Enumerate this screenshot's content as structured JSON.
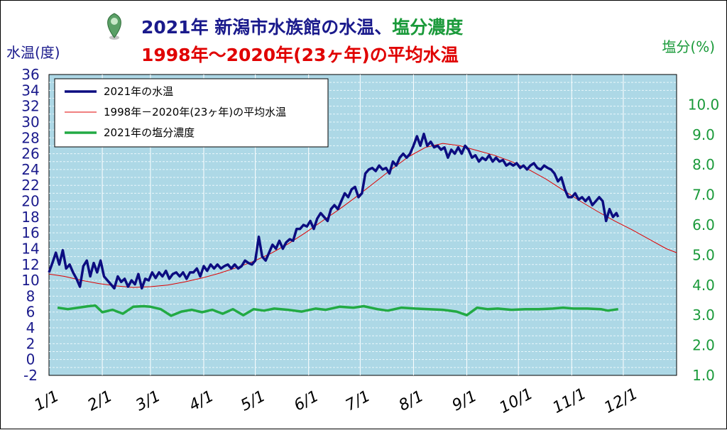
{
  "title_line1_a": "2021年 新潟市水族館の水温、",
  "title_line1_b": "塩分濃度",
  "title_line2": "1998年～2020年(23ヶ年)の平均水温",
  "colors": {
    "water_2021": "#0c0c80",
    "average": "#e00000",
    "salinity": "#22aa44",
    "plot_bg": "#add8e6",
    "left_axis": "#1a1a8c",
    "right_axis": "#1a9a3a"
  },
  "chart_data": {
    "type": "line",
    "ylabel_left": "水温(度)",
    "ylabel_right": "塩分(%)",
    "ylim_left": [
      -2,
      36
    ],
    "ylim_right": [
      1.0,
      11.0
    ],
    "yticks_left": [
      "36",
      "34",
      "32",
      "30",
      "28",
      "26",
      "24",
      "22",
      "20",
      "18",
      "16",
      "14",
      "12",
      "10",
      "8",
      "6",
      "4",
      "2",
      "0",
      "-2"
    ],
    "yticks_right": [
      "10.0",
      "9.0",
      "8.0",
      "7.0",
      "6.0",
      "5.0",
      "4.0",
      "3.0",
      "2.0",
      "1.0"
    ],
    "xlim_days": [
      1,
      366
    ],
    "x_ticks": [
      {
        "label": "1/1",
        "day": 1
      },
      {
        "label": "2/1",
        "day": 32
      },
      {
        "label": "3/1",
        "day": 60
      },
      {
        "label": "4/1",
        "day": 91
      },
      {
        "label": "5/1",
        "day": 121
      },
      {
        "label": "6/1",
        "day": 152
      },
      {
        "label": "7/1",
        "day": 182
      },
      {
        "label": "8/1",
        "day": 213
      },
      {
        "label": "9/1",
        "day": 244
      },
      {
        "label": "10/1",
        "day": 274
      },
      {
        "label": "11/1",
        "day": 305
      },
      {
        "label": "12/1",
        "day": 335
      }
    ],
    "legend": [
      "2021年の水温",
      "1998年－2020年(23ヶ年)の平均水温",
      "2021年の塩分濃度"
    ],
    "legend_position": "top-left",
    "grid": true,
    "series": [
      {
        "name": "2021年の水温",
        "axis": "left",
        "points": [
          [
            1,
            11.0
          ],
          [
            3,
            12.2
          ],
          [
            5,
            13.5
          ],
          [
            7,
            12.0
          ],
          [
            9,
            13.8
          ],
          [
            11,
            11.5
          ],
          [
            13,
            12.0
          ],
          [
            15,
            11.0
          ],
          [
            17,
            10.2
          ],
          [
            19,
            9.2
          ],
          [
            21,
            11.8
          ],
          [
            23,
            12.5
          ],
          [
            25,
            10.5
          ],
          [
            27,
            12.2
          ],
          [
            29,
            11.0
          ],
          [
            31,
            12.5
          ],
          [
            33,
            10.5
          ],
          [
            35,
            10.0
          ],
          [
            37,
            9.5
          ],
          [
            39,
            9.0
          ],
          [
            41,
            10.5
          ],
          [
            43,
            9.8
          ],
          [
            45,
            10.2
          ],
          [
            47,
            9.2
          ],
          [
            49,
            10.0
          ],
          [
            51,
            9.5
          ],
          [
            53,
            10.8
          ],
          [
            55,
            9.0
          ],
          [
            57,
            10.2
          ],
          [
            59,
            10.0
          ],
          [
            61,
            11.0
          ],
          [
            63,
            10.3
          ],
          [
            65,
            11.0
          ],
          [
            67,
            10.5
          ],
          [
            69,
            11.2
          ],
          [
            71,
            10.2
          ],
          [
            73,
            10.8
          ],
          [
            75,
            11.0
          ],
          [
            77,
            10.5
          ],
          [
            79,
            11.0
          ],
          [
            81,
            10.2
          ],
          [
            83,
            11.0
          ],
          [
            85,
            11.0
          ],
          [
            87,
            11.5
          ],
          [
            89,
            10.5
          ],
          [
            91,
            11.8
          ],
          [
            93,
            11.2
          ],
          [
            95,
            12.0
          ],
          [
            97,
            11.5
          ],
          [
            99,
            12.0
          ],
          [
            101,
            11.5
          ],
          [
            103,
            11.8
          ],
          [
            105,
            12.0
          ],
          [
            107,
            11.5
          ],
          [
            109,
            12.0
          ],
          [
            111,
            11.5
          ],
          [
            113,
            11.8
          ],
          [
            115,
            12.5
          ],
          [
            117,
            12.2
          ],
          [
            119,
            12.0
          ],
          [
            121,
            12.5
          ],
          [
            123,
            15.5
          ],
          [
            125,
            13.0
          ],
          [
            127,
            12.5
          ],
          [
            129,
            13.5
          ],
          [
            131,
            14.5
          ],
          [
            133,
            14.0
          ],
          [
            135,
            15.0
          ],
          [
            137,
            14.0
          ],
          [
            139,
            14.8
          ],
          [
            141,
            15.2
          ],
          [
            143,
            15.0
          ],
          [
            145,
            16.5
          ],
          [
            147,
            16.5
          ],
          [
            149,
            17.0
          ],
          [
            151,
            16.8
          ],
          [
            153,
            17.5
          ],
          [
            155,
            16.5
          ],
          [
            157,
            17.8
          ],
          [
            159,
            18.5
          ],
          [
            161,
            18.0
          ],
          [
            163,
            17.5
          ],
          [
            165,
            19.0
          ],
          [
            167,
            19.5
          ],
          [
            169,
            19.0
          ],
          [
            171,
            20.0
          ],
          [
            173,
            21.0
          ],
          [
            175,
            20.5
          ],
          [
            177,
            21.5
          ],
          [
            179,
            21.8
          ],
          [
            181,
            20.5
          ],
          [
            183,
            21.0
          ],
          [
            185,
            23.5
          ],
          [
            187,
            24.0
          ],
          [
            189,
            24.2
          ],
          [
            191,
            23.8
          ],
          [
            193,
            24.5
          ],
          [
            195,
            24.0
          ],
          [
            197,
            24.2
          ],
          [
            199,
            23.5
          ],
          [
            201,
            25.0
          ],
          [
            203,
            24.5
          ],
          [
            205,
            25.5
          ],
          [
            207,
            26.0
          ],
          [
            209,
            25.5
          ],
          [
            211,
            26.0
          ],
          [
            213,
            27.0
          ],
          [
            215,
            28.2
          ],
          [
            217,
            27.0
          ],
          [
            219,
            28.5
          ],
          [
            221,
            27.0
          ],
          [
            223,
            27.5
          ],
          [
            225,
            26.8
          ],
          [
            227,
            27.0
          ],
          [
            229,
            26.5
          ],
          [
            231,
            26.8
          ],
          [
            233,
            25.5
          ],
          [
            235,
            26.5
          ],
          [
            237,
            26.0
          ],
          [
            239,
            26.8
          ],
          [
            241,
            26.0
          ],
          [
            243,
            27.0
          ],
          [
            245,
            26.5
          ],
          [
            247,
            25.5
          ],
          [
            249,
            25.8
          ],
          [
            251,
            25.0
          ],
          [
            253,
            25.5
          ],
          [
            255,
            25.2
          ],
          [
            257,
            25.8
          ],
          [
            259,
            25.0
          ],
          [
            261,
            25.5
          ],
          [
            263,
            25.0
          ],
          [
            265,
            25.2
          ],
          [
            267,
            24.5
          ],
          [
            269,
            24.8
          ],
          [
            271,
            24.5
          ],
          [
            273,
            24.8
          ],
          [
            275,
            24.2
          ],
          [
            277,
            24.5
          ],
          [
            279,
            24.0
          ],
          [
            281,
            24.5
          ],
          [
            283,
            24.8
          ],
          [
            285,
            24.2
          ],
          [
            287,
            24.0
          ],
          [
            289,
            24.5
          ],
          [
            291,
            24.2
          ],
          [
            293,
            24.0
          ],
          [
            295,
            23.5
          ],
          [
            297,
            22.5
          ],
          [
            299,
            23.0
          ],
          [
            301,
            21.5
          ],
          [
            303,
            20.5
          ],
          [
            305,
            20.5
          ],
          [
            307,
            21.0
          ],
          [
            309,
            20.2
          ],
          [
            311,
            20.5
          ],
          [
            313,
            20.0
          ],
          [
            315,
            20.5
          ],
          [
            317,
            19.5
          ],
          [
            319,
            20.0
          ],
          [
            321,
            20.5
          ],
          [
            323,
            20.0
          ],
          [
            325,
            17.5
          ],
          [
            327,
            19.0
          ],
          [
            329,
            18.0
          ],
          [
            331,
            18.5
          ],
          [
            332,
            18.0
          ]
        ]
      },
      {
        "name": "1998年－2020年(23ヶ年)の平均水温",
        "axis": "left",
        "points": [
          [
            1,
            10.8
          ],
          [
            10,
            10.5
          ],
          [
            20,
            10.0
          ],
          [
            30,
            9.6
          ],
          [
            40,
            9.3
          ],
          [
            50,
            9.1
          ],
          [
            60,
            9.2
          ],
          [
            70,
            9.4
          ],
          [
            80,
            9.8
          ],
          [
            90,
            10.3
          ],
          [
            100,
            10.9
          ],
          [
            110,
            11.6
          ],
          [
            120,
            12.4
          ],
          [
            130,
            13.4
          ],
          [
            140,
            14.6
          ],
          [
            150,
            16.0
          ],
          [
            160,
            17.5
          ],
          [
            170,
            19.0
          ],
          [
            180,
            20.6
          ],
          [
            190,
            22.3
          ],
          [
            200,
            24.0
          ],
          [
            210,
            25.6
          ],
          [
            220,
            26.8
          ],
          [
            230,
            27.3
          ],
          [
            240,
            27.0
          ],
          [
            250,
            26.4
          ],
          [
            260,
            25.8
          ],
          [
            270,
            25.0
          ],
          [
            280,
            24.0
          ],
          [
            290,
            22.8
          ],
          [
            300,
            21.4
          ],
          [
            310,
            20.0
          ],
          [
            320,
            18.7
          ],
          [
            330,
            17.5
          ],
          [
            340,
            16.4
          ],
          [
            350,
            15.2
          ],
          [
            360,
            14.0
          ],
          [
            366,
            13.5
          ]
        ]
      },
      {
        "name": "2021年の塩分濃度",
        "axis": "right",
        "points": [
          [
            6,
            3.25
          ],
          [
            12,
            3.2
          ],
          [
            18,
            3.25
          ],
          [
            24,
            3.3
          ],
          [
            28,
            3.32
          ],
          [
            32,
            3.1
          ],
          [
            38,
            3.18
          ],
          [
            44,
            3.05
          ],
          [
            50,
            3.28
          ],
          [
            56,
            3.3
          ],
          [
            60,
            3.28
          ],
          [
            66,
            3.2
          ],
          [
            72,
            2.98
          ],
          [
            78,
            3.12
          ],
          [
            84,
            3.18
          ],
          [
            90,
            3.1
          ],
          [
            96,
            3.18
          ],
          [
            102,
            3.05
          ],
          [
            108,
            3.2
          ],
          [
            114,
            3.0
          ],
          [
            120,
            3.2
          ],
          [
            126,
            3.15
          ],
          [
            132,
            3.22
          ],
          [
            140,
            3.18
          ],
          [
            148,
            3.12
          ],
          [
            156,
            3.22
          ],
          [
            162,
            3.18
          ],
          [
            170,
            3.28
          ],
          [
            178,
            3.25
          ],
          [
            184,
            3.3
          ],
          [
            192,
            3.2
          ],
          [
            198,
            3.15
          ],
          [
            206,
            3.25
          ],
          [
            214,
            3.22
          ],
          [
            222,
            3.2
          ],
          [
            230,
            3.18
          ],
          [
            238,
            3.12
          ],
          [
            244,
            3.0
          ],
          [
            250,
            3.25
          ],
          [
            256,
            3.2
          ],
          [
            262,
            3.22
          ],
          [
            270,
            3.18
          ],
          [
            278,
            3.2
          ],
          [
            286,
            3.2
          ],
          [
            294,
            3.22
          ],
          [
            300,
            3.25
          ],
          [
            306,
            3.22
          ],
          [
            314,
            3.22
          ],
          [
            322,
            3.2
          ],
          [
            326,
            3.15
          ],
          [
            332,
            3.2
          ]
        ]
      }
    ]
  }
}
